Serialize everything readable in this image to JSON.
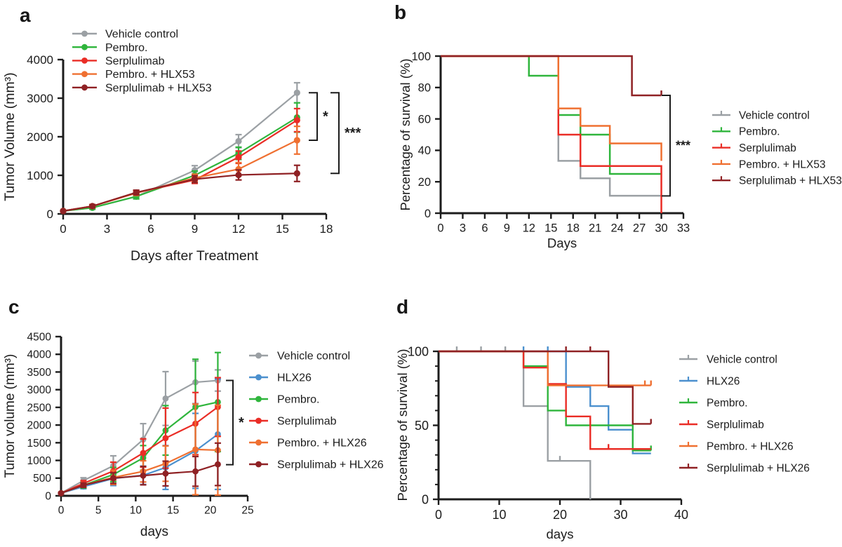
{
  "figure": {
    "background": "#ffffff"
  },
  "chart_data": [
    {
      "id": "a",
      "panel_label": "a",
      "type": "line",
      "xlabel": "Days after Treatment",
      "ylabel": "Tumor Volume (mm³)",
      "xlim": [
        0,
        18
      ],
      "xticks": [
        0,
        3,
        6,
        9,
        12,
        15,
        18
      ],
      "ylim": [
        0,
        4000
      ],
      "yticks": [
        0,
        1000,
        2000,
        3000,
        4000
      ],
      "x": [
        0,
        2,
        5,
        9,
        12,
        16
      ],
      "legend_position": "inside-top-left",
      "series": [
        {
          "name": "Vehicle control",
          "color": "#9BA0A4",
          "values": [
            75,
            160,
            450,
            1130,
            1885,
            3140
          ],
          "err": [
            15,
            40,
            60,
            120,
            170,
            260
          ]
        },
        {
          "name": "Pembro.",
          "color": "#2FB53C",
          "values": [
            75,
            160,
            450,
            1000,
            1570,
            2500
          ],
          "err": [
            15,
            40,
            60,
            110,
            160,
            380
          ]
        },
        {
          "name": "Serplulimab",
          "color": "#EA2D26",
          "values": [
            75,
            200,
            550,
            880,
            1470,
            2430
          ],
          "err": [
            15,
            40,
            60,
            90,
            160,
            300
          ]
        },
        {
          "name": "Pembro. + HLX53",
          "color": "#EF7031",
          "values": [
            75,
            200,
            540,
            930,
            1160,
            1910
          ],
          "err": [
            15,
            40,
            60,
            100,
            170,
            360
          ]
        },
        {
          "name": "Serplulimab + HLX53",
          "color": "#8F2124",
          "values": [
            75,
            200,
            555,
            900,
            1010,
            1050
          ],
          "err": [
            15,
            40,
            60,
            90,
            130,
            210
          ]
        }
      ],
      "significance": [
        {
          "label": "*",
          "from": 3140,
          "to": 1910
        },
        {
          "label": "***",
          "from": 3140,
          "to": 1050
        }
      ]
    },
    {
      "id": "b",
      "panel_label": "b",
      "type": "km",
      "xlabel": "Days",
      "ylabel": "Percentage of survival (%)",
      "xlim": [
        0,
        33
      ],
      "xticks": [
        0,
        3,
        6,
        9,
        12,
        15,
        18,
        21,
        24,
        27,
        30,
        33
      ],
      "ylim": [
        0,
        100
      ],
      "yticks": [
        0,
        20,
        40,
        60,
        80,
        100
      ],
      "legend_position": "right",
      "series": [
        {
          "name": "Vehicle control",
          "color": "#9BA0A4",
          "steps": [
            [
              0,
              100
            ],
            [
              16,
              100
            ],
            [
              16,
              33.3
            ],
            [
              19,
              33.3
            ],
            [
              19,
              22.2
            ],
            [
              23,
              22.2
            ],
            [
              23,
              11.1
            ],
            [
              30,
              11.1
            ]
          ],
          "censors": []
        },
        {
          "name": "Pembro.",
          "color": "#2FB53C",
          "steps": [
            [
              0,
              100
            ],
            [
              12,
              100
            ],
            [
              12,
              87.5
            ],
            [
              16,
              87.5
            ],
            [
              16,
              62.5
            ],
            [
              19,
              62.5
            ],
            [
              19,
              50
            ],
            [
              23,
              50
            ],
            [
              23,
              25
            ],
            [
              30,
              25
            ]
          ],
          "censors": []
        },
        {
          "name": "Serplulimab",
          "color": "#EA2D26",
          "steps": [
            [
              0,
              100
            ],
            [
              16,
              100
            ],
            [
              16,
              50
            ],
            [
              19,
              50
            ],
            [
              19,
              30
            ],
            [
              30,
              30
            ],
            [
              30,
              0
            ]
          ],
          "censors": []
        },
        {
          "name": "Pembro. + HLX53",
          "color": "#EF7031",
          "steps": [
            [
              0,
              100
            ],
            [
              16,
              100
            ],
            [
              16,
              66.7
            ],
            [
              19,
              66.7
            ],
            [
              19,
              55.6
            ],
            [
              23,
              55.6
            ],
            [
              23,
              44.4
            ],
            [
              30,
              44.4
            ],
            [
              30,
              33.3
            ]
          ],
          "censors": []
        },
        {
          "name": "Serplulimab + HLX53",
          "color": "#8F2124",
          "steps": [
            [
              0,
              100
            ],
            [
              26,
              100
            ],
            [
              26,
              75
            ],
            [
              30,
              75
            ]
          ],
          "censors": [
            [
              30,
              75
            ]
          ]
        }
      ],
      "significance": [
        {
          "label": "***",
          "from": 75,
          "to": 11
        }
      ]
    },
    {
      "id": "c",
      "panel_label": "c",
      "type": "line",
      "xlabel": "days",
      "ylabel": "Tumor volume (mm³)",
      "xlim": [
        0,
        25
      ],
      "xticks": [
        0,
        5,
        10,
        15,
        20,
        25
      ],
      "ylim": [
        0,
        4500
      ],
      "yticks": [
        0,
        500,
        1000,
        1500,
        2000,
        2500,
        3000,
        3500,
        4000,
        4500
      ],
      "x": [
        0,
        3,
        7,
        11,
        14,
        18,
        21
      ],
      "legend_position": "right",
      "series": [
        {
          "name": "Vehicle control",
          "color": "#9BA0A4",
          "values": [
            75,
            430,
            850,
            1590,
            2750,
            3210,
            3260
          ],
          "err": [
            15,
            80,
            280,
            450,
            760,
            600,
            300
          ]
        },
        {
          "name": "HLX26",
          "color": "#4B90CE",
          "values": [
            75,
            260,
            490,
            580,
            800,
            1270,
            1740
          ],
          "err": [
            15,
            60,
            200,
            260,
            620,
            1060,
            1560
          ]
        },
        {
          "name": "Pembro.",
          "color": "#2FB53C",
          "values": [
            75,
            300,
            600,
            1070,
            1850,
            2510,
            2650
          ],
          "err": [
            15,
            80,
            200,
            350,
            700,
            1350,
            1400
          ]
        },
        {
          "name": "Serplulimab",
          "color": "#EA2D26",
          "values": [
            75,
            350,
            700,
            1210,
            1630,
            2040,
            2510
          ],
          "err": [
            15,
            80,
            250,
            400,
            850,
            880,
            830
          ]
        },
        {
          "name": "Pembro. + HLX26",
          "color": "#EF7031",
          "values": [
            75,
            300,
            520,
            690,
            910,
            1310,
            1290
          ],
          "err": [
            15,
            60,
            200,
            300,
            500,
            1280,
            1270
          ]
        },
        {
          "name": "Serplulimab + HLX26",
          "color": "#8F2124",
          "values": [
            75,
            300,
            500,
            570,
            630,
            690,
            890
          ],
          "err": [
            15,
            60,
            150,
            260,
            350,
            420,
            600
          ]
        }
      ],
      "significance": [
        {
          "label": "*",
          "from": 3260,
          "to": 880
        }
      ]
    },
    {
      "id": "d",
      "panel_label": "d",
      "type": "km",
      "xlabel": "days",
      "ylabel": "Percentage of survival (%)",
      "xlim": [
        0,
        40
      ],
      "xticks": [
        0,
        10,
        20,
        30,
        40
      ],
      "ylim": [
        0,
        100
      ],
      "yticks": [
        0,
        50,
        100
      ],
      "yminor": 10,
      "legend_position": "right",
      "series": [
        {
          "name": "Vehicle control",
          "color": "#9BA0A4",
          "steps": [
            [
              0,
              100
            ],
            [
              14,
              100
            ],
            [
              14,
              63
            ],
            [
              18,
              63
            ],
            [
              18,
              26
            ],
            [
              25,
              26
            ],
            [
              25,
              0
            ]
          ],
          "censors": [
            [
              3,
              100
            ],
            [
              7,
              100
            ],
            [
              11,
              100
            ],
            [
              20,
              26
            ]
          ]
        },
        {
          "name": "HLX26",
          "color": "#4B90CE",
          "steps": [
            [
              0,
              100
            ],
            [
              21,
              100
            ],
            [
              21,
              76
            ],
            [
              25,
              76
            ],
            [
              25,
              63
            ],
            [
              28,
              63
            ],
            [
              28,
              47
            ],
            [
              32,
              47
            ],
            [
              32,
              31
            ],
            [
              35,
              31
            ]
          ],
          "censors": [
            [
              14,
              100
            ],
            [
              18,
              100
            ]
          ]
        },
        {
          "name": "Pembro.",
          "color": "#2FB53C",
          "steps": [
            [
              0,
              100
            ],
            [
              14,
              100
            ],
            [
              14,
              90
            ],
            [
              18,
              90
            ],
            [
              18,
              60
            ],
            [
              21,
              60
            ],
            [
              21,
              50
            ],
            [
              32,
              50
            ],
            [
              32,
              33
            ],
            [
              35,
              33
            ]
          ],
          "censors": [
            [
              35,
              33
            ]
          ]
        },
        {
          "name": "Serplulimab",
          "color": "#EA2D26",
          "steps": [
            [
              0,
              100
            ],
            [
              14,
              100
            ],
            [
              14,
              89
            ],
            [
              18,
              89
            ],
            [
              18,
              78
            ],
            [
              21,
              78
            ],
            [
              21,
              56
            ],
            [
              25,
              56
            ],
            [
              25,
              34
            ],
            [
              35,
              34
            ]
          ],
          "censors": [
            [
              28,
              34
            ]
          ]
        },
        {
          "name": "Pembro. + HLX26",
          "color": "#EF7031",
          "steps": [
            [
              0,
              100
            ],
            [
              18,
              100
            ],
            [
              18,
              77
            ],
            [
              35,
              77
            ]
          ],
          "censors": [
            [
              28,
              77
            ],
            [
              34,
              77
            ],
            [
              35,
              77
            ]
          ]
        },
        {
          "name": "Serplulimab + HLX26",
          "color": "#8F2124",
          "steps": [
            [
              0,
              100
            ],
            [
              28,
              100
            ],
            [
              28,
              76
            ],
            [
              32,
              76
            ],
            [
              32,
              51
            ],
            [
              35,
              51
            ]
          ],
          "censors": [
            [
              21,
              100
            ],
            [
              25,
              100
            ],
            [
              35,
              51
            ]
          ]
        }
      ],
      "significance": []
    }
  ]
}
